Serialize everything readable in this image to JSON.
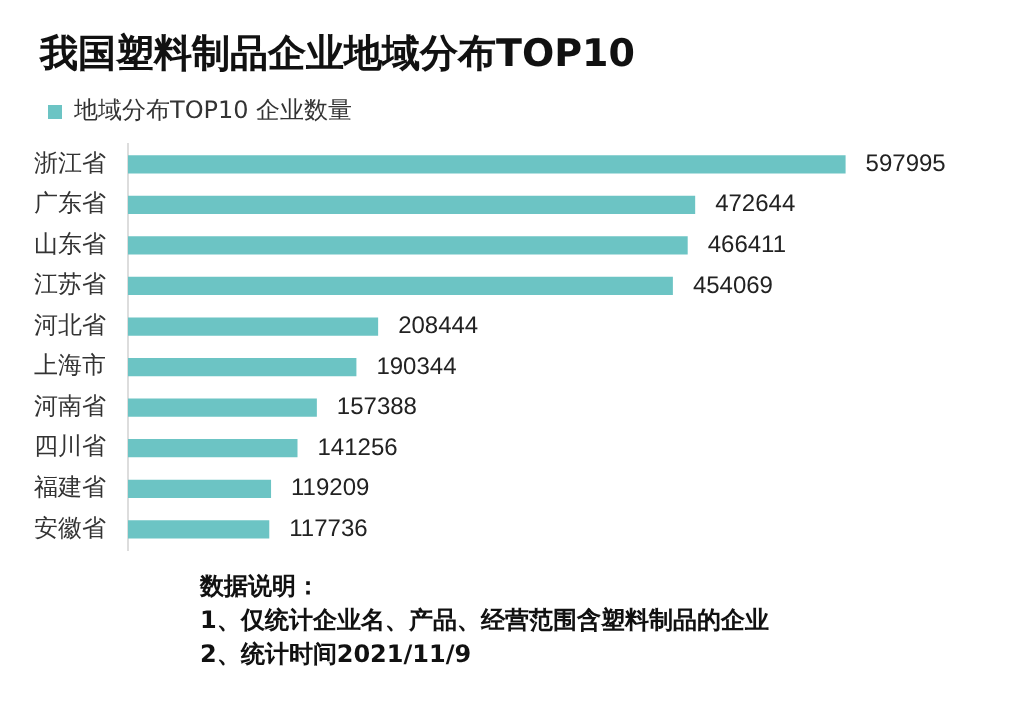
{
  "chart_data": {
    "type": "bar",
    "orientation": "horizontal",
    "title": "我国塑料制品企业地域分布TOP10",
    "categories": [
      "浙江省",
      "广东省",
      "山东省",
      "江苏省",
      "河北省",
      "上海市",
      "河南省",
      "四川省",
      "福建省",
      "安徽省"
    ],
    "series": [
      {
        "name": "地域分布TOP10 企业数量",
        "color": "#6cc4c4",
        "values": [
          597995,
          472644,
          466411,
          454069,
          208444,
          190344,
          157388,
          141256,
          119209,
          117736
        ]
      }
    ],
    "data_labels": true,
    "legend": "top left",
    "annotations": [
      "数据说明：",
      "1、仅统计企业名、产品、经营范围含塑料制品的企业",
      "2、统计时间2021/11/9"
    ]
  }
}
